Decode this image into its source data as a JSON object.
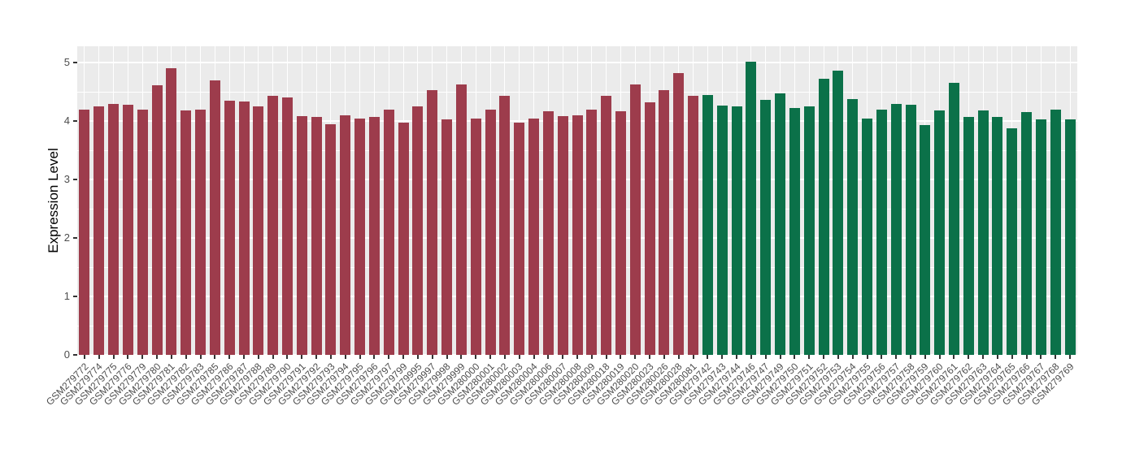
{
  "chart_data": {
    "type": "bar",
    "title": "",
    "xlabel": "",
    "ylabel": "Expression Level",
    "ylim": [
      0,
      5
    ],
    "y_ticks": [
      0,
      1,
      2,
      3,
      4,
      5
    ],
    "y_minor_ticks": [
      0.5,
      1.5,
      2.5,
      3.5,
      4.5
    ],
    "legend": "none",
    "grid": {
      "major_color": "#FFFFFF",
      "minor_color": "#FFFFFF",
      "panel_background": "#EBEBEB"
    },
    "groups": [
      {
        "name": "group-red",
        "color": "#9D3C4C",
        "count": 43
      },
      {
        "name": "group-green",
        "color": "#0B7149",
        "count": 26
      }
    ],
    "categories": [
      "GSM279772",
      "GSM279774",
      "GSM279775",
      "GSM279776",
      "GSM279779",
      "GSM279780",
      "GSM279781",
      "GSM279782",
      "GSM279783",
      "GSM279785",
      "GSM279786",
      "GSM279787",
      "GSM279788",
      "GSM279789",
      "GSM279790",
      "GSM279791",
      "GSM279792",
      "GSM279793",
      "GSM279794",
      "GSM279795",
      "GSM279796",
      "GSM279797",
      "GSM279799",
      "GSM279995",
      "GSM279997",
      "GSM279998",
      "GSM279999",
      "GSM280000",
      "GSM280001",
      "GSM280002",
      "GSM280003",
      "GSM280004",
      "GSM280006",
      "GSM280007",
      "GSM280008",
      "GSM280009",
      "GSM280018",
      "GSM280019",
      "GSM280020",
      "GSM280023",
      "GSM280026",
      "GSM280028",
      "GSM280081",
      "GSM279742",
      "GSM279743",
      "GSM279744",
      "GSM279746",
      "GSM279747",
      "GSM279749",
      "GSM279750",
      "GSM279751",
      "GSM279752",
      "GSM279753",
      "GSM279754",
      "GSM279755",
      "GSM279756",
      "GSM279757",
      "GSM279758",
      "GSM279759",
      "GSM279760",
      "GSM279761",
      "GSM279762",
      "GSM279763",
      "GSM279764",
      "GSM279765",
      "GSM279766",
      "GSM279767",
      "GSM279768",
      "GSM279769"
    ],
    "values": [
      4.2,
      4.25,
      4.3,
      4.28,
      4.2,
      4.62,
      4.9,
      4.18,
      4.2,
      4.7,
      4.35,
      4.33,
      4.25,
      4.43,
      4.4,
      4.08,
      4.07,
      3.95,
      4.1,
      4.05,
      4.07,
      4.2,
      3.98,
      4.25,
      4.53,
      4.03,
      4.63,
      4.05,
      4.2,
      4.43,
      3.97,
      4.05,
      4.17,
      4.08,
      4.1,
      4.2,
      4.43,
      4.17,
      4.63,
      4.32,
      4.53,
      4.82,
      4.43,
      4.45,
      4.27,
      4.25,
      5.02,
      4.37,
      4.47,
      4.22,
      4.25,
      4.73,
      4.87,
      4.38,
      4.05,
      4.2,
      4.3,
      4.28,
      3.93,
      4.18,
      4.65,
      4.07,
      4.18,
      4.07,
      3.88,
      4.15,
      4.03,
      4.2,
      4.03
    ]
  }
}
